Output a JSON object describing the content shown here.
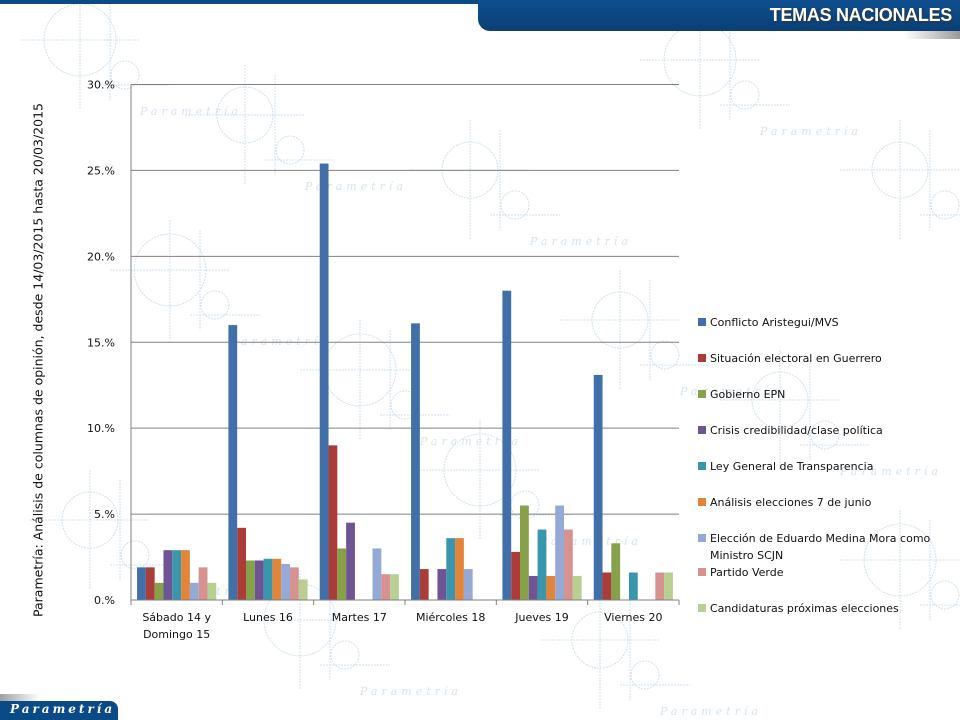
{
  "header": {
    "title": "TEMAS NACIONALES"
  },
  "footer": {
    "logo_text": "Parametría"
  },
  "side_label": "Parametría: Análisis de columnas de opinión, desde 14/03/2015 hasta 20/03/2015",
  "watermark_text": "Parametría",
  "chart_data": {
    "type": "bar",
    "title": "",
    "xlabel": "",
    "ylabel": "",
    "ylim": [
      0,
      30
    ],
    "yticks": [
      "0.%",
      "5.%",
      "10.%",
      "15.%",
      "20.%",
      "25.%",
      "30.%"
    ],
    "ytick_values": [
      0,
      5,
      10,
      15,
      20,
      25,
      30
    ],
    "grid": true,
    "legend_position": "right",
    "categories": [
      "Sábado 14 y Domingo 15",
      "Lunes 16",
      "Martes 17",
      "Miércoles 18",
      "Jueves 19",
      "Viernes 20"
    ],
    "category_lines": [
      [
        "Sábado 14 y",
        "Domingo 15"
      ],
      [
        "Lunes 16"
      ],
      [
        "Martes 17"
      ],
      [
        "Miércoles 18"
      ],
      [
        "Jueves 19"
      ],
      [
        "Viernes 20"
      ]
    ],
    "series": [
      {
        "name": "Conflicto Aristegui/MVS",
        "color": "#4170a8",
        "values": [
          1.9,
          16.0,
          25.4,
          16.1,
          18.0,
          13.1
        ]
      },
      {
        "name": "Situación electoral en Guerrero",
        "color": "#aa3c3a",
        "values": [
          1.9,
          4.2,
          9.0,
          1.8,
          2.8,
          1.6
        ]
      },
      {
        "name": "Gobierno EPN",
        "color": "#87a04a",
        "values": [
          1.0,
          2.3,
          3.0,
          0,
          5.5,
          3.3
        ]
      },
      {
        "name": "Crisis credibilidad/clase política",
        "color": "#6e5494",
        "values": [
          2.9,
          2.3,
          4.5,
          1.8,
          1.4,
          0
        ]
      },
      {
        "name": "Ley General de Transparencia",
        "color": "#3a96ad",
        "values": [
          2.9,
          2.4,
          0,
          3.6,
          4.1,
          1.6
        ]
      },
      {
        "name": "Análisis elecciones 7 de junio",
        "color": "#e2843a",
        "values": [
          2.9,
          2.4,
          0,
          3.6,
          1.4,
          0
        ]
      },
      {
        "name": "Elección de Eduardo Medina Mora como Ministro SCJN",
        "color": "#94a9d6",
        "values": [
          1.0,
          2.1,
          3.0,
          1.8,
          5.5,
          0
        ]
      },
      {
        "name": "Partido Verde",
        "color": "#d59290",
        "values": [
          1.9,
          1.9,
          1.5,
          0,
          4.1,
          1.6
        ]
      },
      {
        "name": "Candidaturas próximas elecciones",
        "color": "#b9cf92",
        "values": [
          1.0,
          1.2,
          1.5,
          0,
          1.4,
          1.6
        ]
      }
    ]
  }
}
